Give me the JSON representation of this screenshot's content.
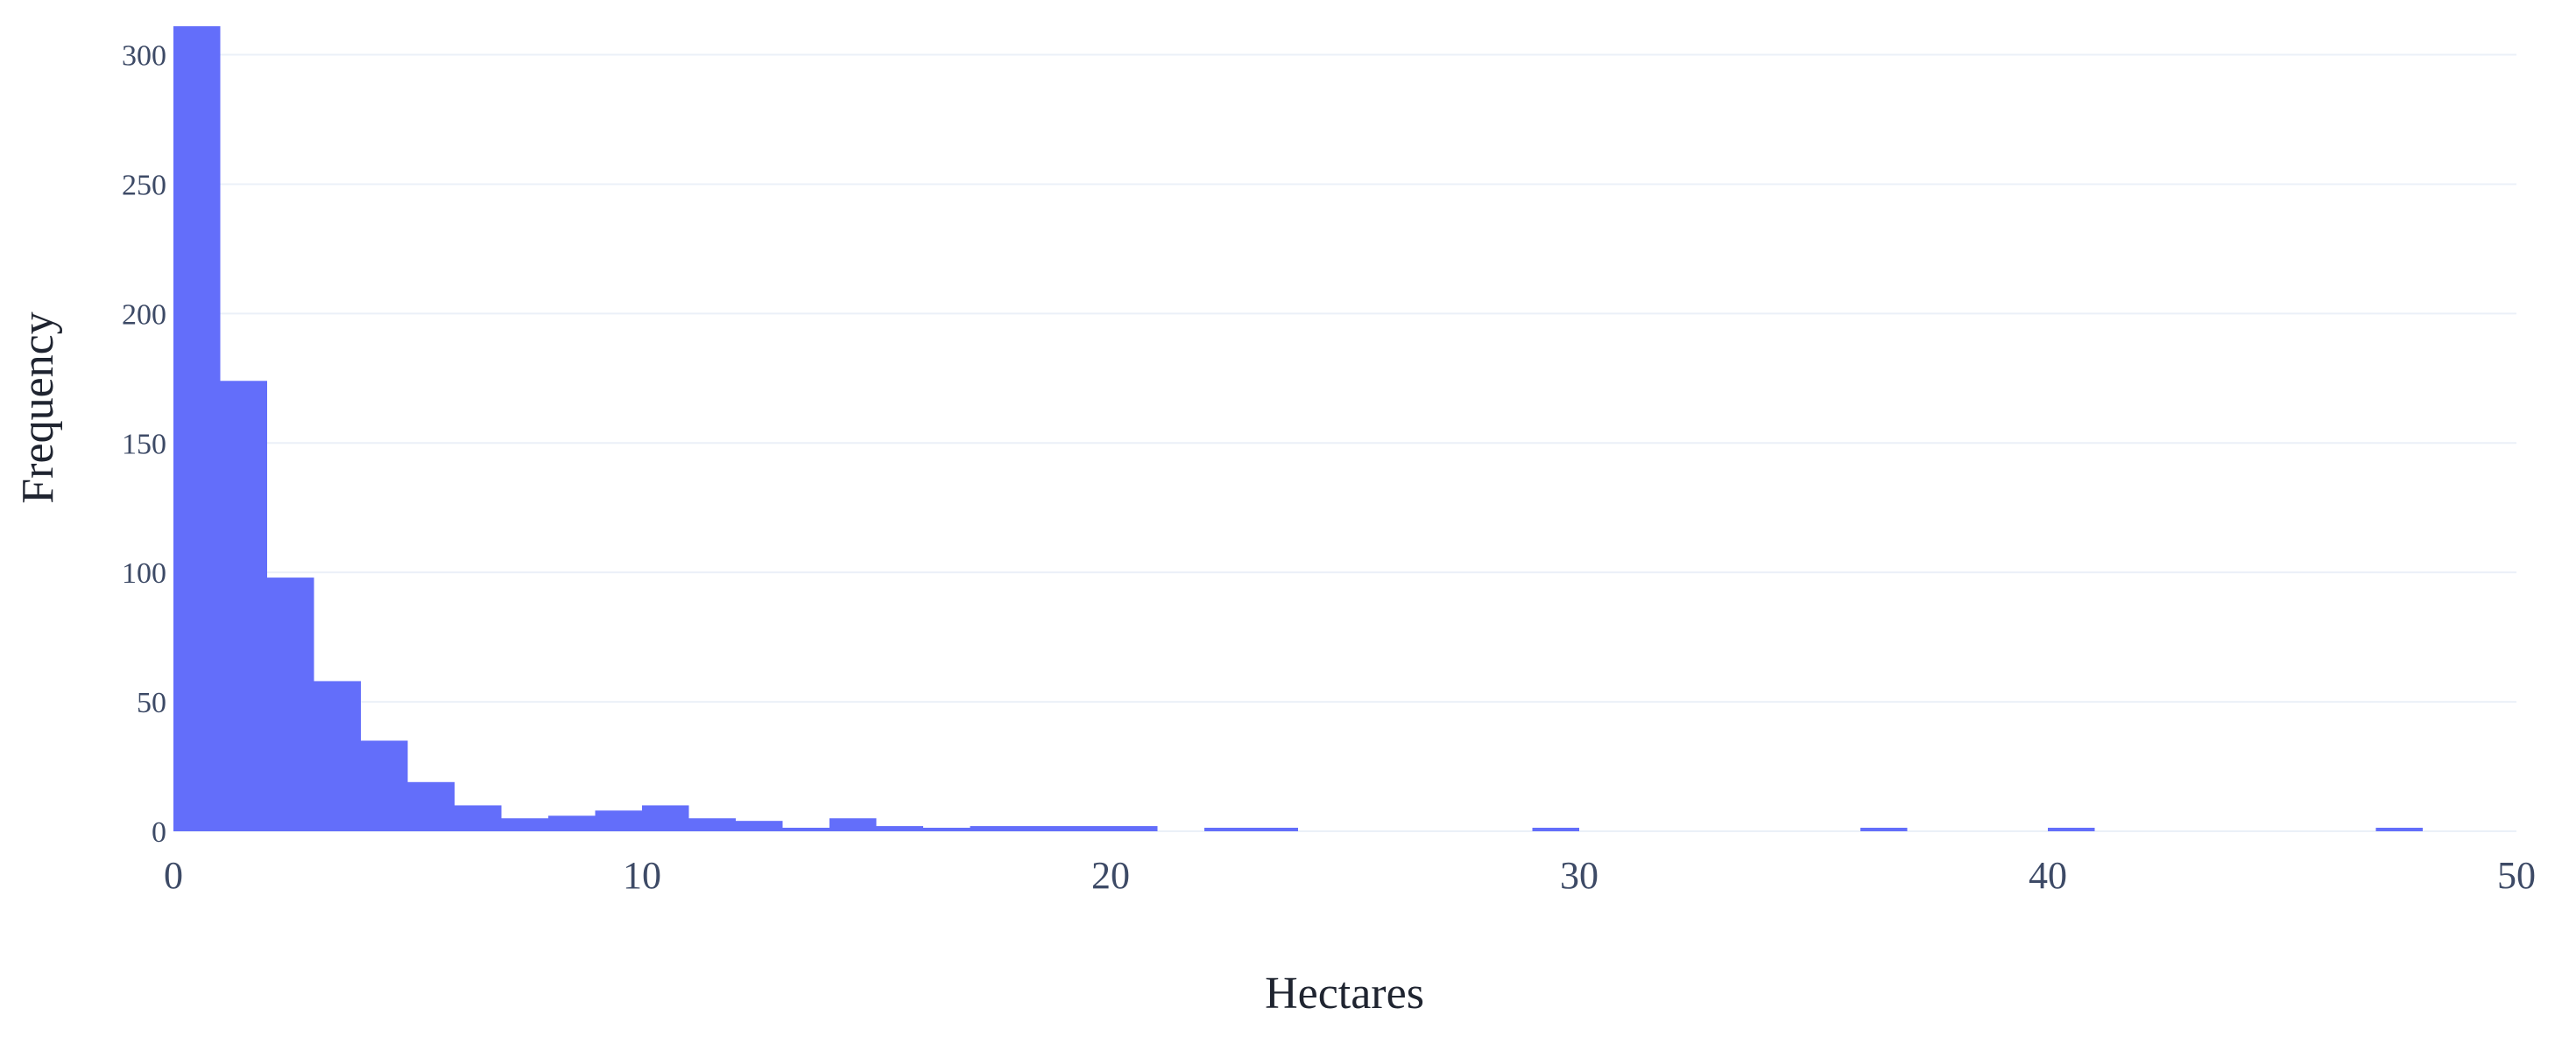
{
  "chart_data": {
    "type": "bar",
    "title": "",
    "xlabel": "Hectares",
    "ylabel": "Frequency",
    "xlim": [
      0,
      50
    ],
    "ylim": [
      0,
      311
    ],
    "grid": true,
    "legend": "none",
    "bin_width": 1,
    "bins": [
      {
        "x0": 0,
        "count": 311
      },
      {
        "x0": 1,
        "count": 174
      },
      {
        "x0": 2,
        "count": 98
      },
      {
        "x0": 3,
        "count": 58
      },
      {
        "x0": 4,
        "count": 35
      },
      {
        "x0": 5,
        "count": 19
      },
      {
        "x0": 6,
        "count": 10
      },
      {
        "x0": 7,
        "count": 5
      },
      {
        "x0": 8,
        "count": 6
      },
      {
        "x0": 9,
        "count": 8
      },
      {
        "x0": 10,
        "count": 10
      },
      {
        "x0": 11,
        "count": 5
      },
      {
        "x0": 12,
        "count": 4
      },
      {
        "x0": 13,
        "count": 1
      },
      {
        "x0": 14,
        "count": 5
      },
      {
        "x0": 15,
        "count": 2
      },
      {
        "x0": 16,
        "count": 1
      },
      {
        "x0": 17,
        "count": 2
      },
      {
        "x0": 18,
        "count": 2
      },
      {
        "x0": 19,
        "count": 2
      },
      {
        "x0": 20,
        "count": 2
      },
      {
        "x0": 22,
        "count": 1
      },
      {
        "x0": 23,
        "count": 1
      },
      {
        "x0": 29,
        "count": 1
      },
      {
        "x0": 36,
        "count": 1
      },
      {
        "x0": 40,
        "count": 1
      },
      {
        "x0": 47,
        "count": 1
      }
    ],
    "x_ticks": [
      0,
      10,
      20,
      30,
      40,
      50
    ],
    "y_ticks": [
      0,
      50,
      100,
      150,
      200,
      250,
      300
    ],
    "bar_color": "#636efa",
    "grid_color": "#ebf0f8"
  }
}
